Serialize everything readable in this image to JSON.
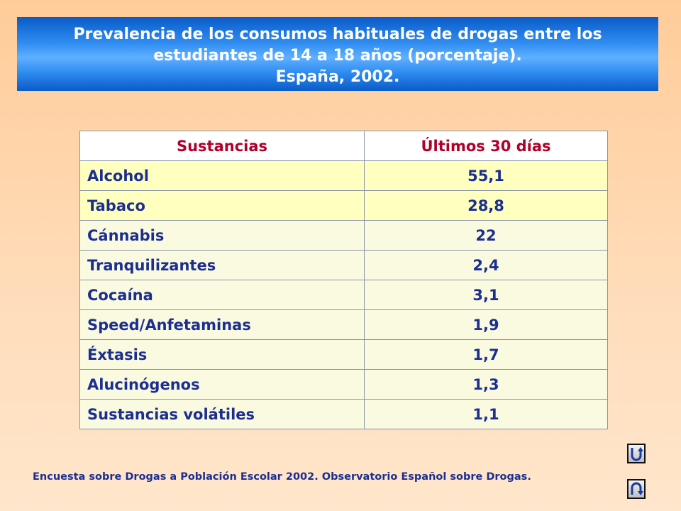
{
  "title": {
    "line1": "Prevalencia de los consumos habituales de drogas entre los",
    "line2": "estudiantes de 14 a 18 años (porcentaje).",
    "line3": "España, 2002."
  },
  "table": {
    "headers": [
      "Sustancias",
      "Últimos 30 días"
    ],
    "rows": [
      {
        "name": "Alcohol",
        "value": "55,1"
      },
      {
        "name": "Tabaco",
        "value": "28,8"
      },
      {
        "name": "Cánnabis",
        "value": "22"
      },
      {
        "name": "Tranquilizantes",
        "value": "2,4"
      },
      {
        "name": "Cocaína",
        "value": "3,1"
      },
      {
        "name": "Speed/Anfetaminas",
        "value": "1,9"
      },
      {
        "name": "Éxtasis",
        "value": "1,7"
      },
      {
        "name": "Alucinógenos",
        "value": "1,3"
      },
      {
        "name": "Sustancias volátiles",
        "value": "1,1"
      }
    ]
  },
  "source": "Encuesta sobre Drogas a Población Escolar 2002. Observatorio Español sobre Drogas.",
  "nav": {
    "back_icon": "return-arrow-icon",
    "forward_icon": "u-turn-arrow-icon"
  },
  "colors": {
    "banner": "#2f8cf0",
    "header_text": "#b0002a",
    "body_text": "#1c2f90",
    "highlight_row": "#ffffc0",
    "plain_row": "#fafae0"
  }
}
